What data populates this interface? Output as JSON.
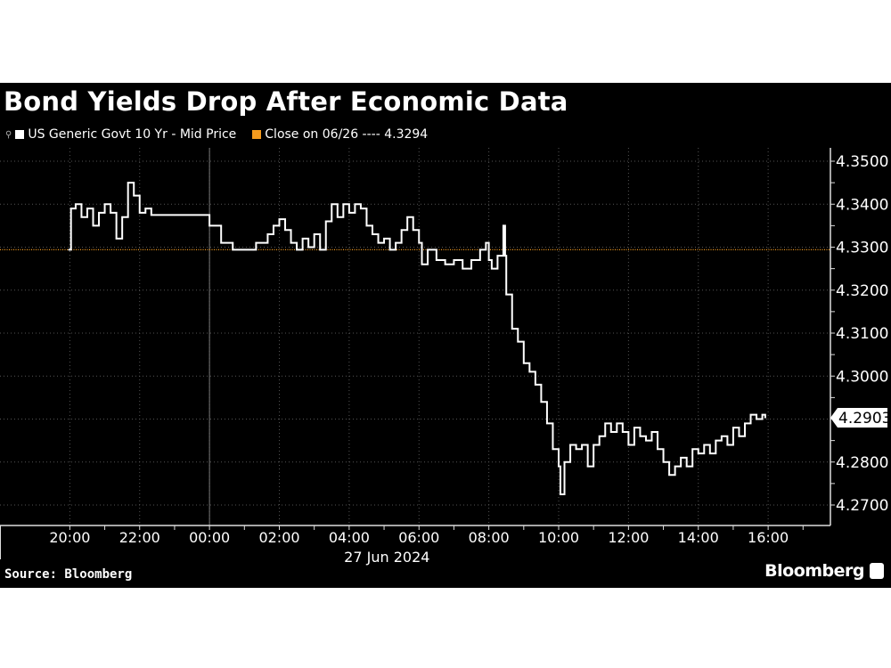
{
  "chart_data": {
    "type": "line",
    "title": "Bond Yields Drop After Economic Data",
    "source": "Source: Bloomberg",
    "brand": "Bloomberg",
    "legend_position": "top-left",
    "grid": true,
    "xlabel": "27 Jun 2024",
    "x_tick_labels": [
      "20:00",
      "22:00",
      "00:00",
      "02:00",
      "04:00",
      "06:00",
      "08:00",
      "10:00",
      "12:00",
      "14:00",
      "16:00"
    ],
    "x_ticks": [
      "2024-06-26 20:00",
      "2024-06-26 22:00",
      "2024-06-27 00:00",
      "2024-06-27 02:00",
      "2024-06-27 04:00",
      "2024-06-27 06:00",
      "2024-06-27 08:00",
      "2024-06-27 10:00",
      "2024-06-27 12:00",
      "2024-06-27 14:00",
      "2024-06-27 16:00"
    ],
    "xlim": [
      "2024-06-26 18:00",
      "2024-06-27 17:47"
    ],
    "y_tick_labels": [
      "4.3500",
      "4.3400",
      "4.3300",
      "4.3200",
      "4.3100",
      "4.3000",
      "4.2800",
      "4.2700"
    ],
    "y_ticks": [
      4.35,
      4.34,
      4.33,
      4.32,
      4.31,
      4.3,
      4.28,
      4.27
    ],
    "ylim": [
      4.2667,
      4.3533
    ],
    "y_axis_side": "right",
    "last_value_label": "4.2903",
    "last_value": 4.2903,
    "series": [
      {
        "name": "US Generic Govt 10 Yr - Mid Price",
        "color": "#ffffff",
        "step": true,
        "points": [
          [
            "2024-06-26 19:58",
            4.3294
          ],
          [
            "2024-06-26 20:02",
            4.339
          ],
          [
            "2024-06-26 20:10",
            4.34
          ],
          [
            "2024-06-26 20:20",
            4.337
          ],
          [
            "2024-06-26 20:30",
            4.339
          ],
          [
            "2024-06-26 20:40",
            4.335
          ],
          [
            "2024-06-26 20:50",
            4.338
          ],
          [
            "2024-06-26 21:00",
            4.34
          ],
          [
            "2024-06-26 21:10",
            4.338
          ],
          [
            "2024-06-26 21:20",
            4.332
          ],
          [
            "2024-06-26 21:30",
            4.337
          ],
          [
            "2024-06-26 21:40",
            4.345
          ],
          [
            "2024-06-26 21:50",
            4.342
          ],
          [
            "2024-06-26 22:00",
            4.338
          ],
          [
            "2024-06-26 22:10",
            4.339
          ],
          [
            "2024-06-26 22:20",
            4.3375
          ],
          [
            "2024-06-26 23:00",
            4.3375
          ],
          [
            "2024-06-26 23:55",
            4.3375
          ],
          [
            "2024-06-27 00:00",
            4.335
          ],
          [
            "2024-06-27 00:20",
            4.331
          ],
          [
            "2024-06-27 00:40",
            4.3294
          ],
          [
            "2024-06-27 01:15",
            4.3294
          ],
          [
            "2024-06-27 01:20",
            4.331
          ],
          [
            "2024-06-27 01:40",
            4.333
          ],
          [
            "2024-06-27 01:50",
            4.335
          ],
          [
            "2024-06-27 02:00",
            4.3365
          ],
          [
            "2024-06-27 02:10",
            4.334
          ],
          [
            "2024-06-27 02:20",
            4.331
          ],
          [
            "2024-06-27 02:30",
            4.3294
          ],
          [
            "2024-06-27 02:40",
            4.332
          ],
          [
            "2024-06-27 02:50",
            4.33
          ],
          [
            "2024-06-27 03:00",
            4.333
          ],
          [
            "2024-06-27 03:10",
            4.3294
          ],
          [
            "2024-06-27 03:20",
            4.336
          ],
          [
            "2024-06-27 03:30",
            4.34
          ],
          [
            "2024-06-27 03:40",
            4.337
          ],
          [
            "2024-06-27 03:50",
            4.34
          ],
          [
            "2024-06-27 04:00",
            4.338
          ],
          [
            "2024-06-27 04:10",
            4.34
          ],
          [
            "2024-06-27 04:20",
            4.339
          ],
          [
            "2024-06-27 04:30",
            4.335
          ],
          [
            "2024-06-27 04:40",
            4.333
          ],
          [
            "2024-06-27 04:50",
            4.331
          ],
          [
            "2024-06-27 05:00",
            4.332
          ],
          [
            "2024-06-27 05:10",
            4.3294
          ],
          [
            "2024-06-27 05:20",
            4.331
          ],
          [
            "2024-06-27 05:30",
            4.334
          ],
          [
            "2024-06-27 05:40",
            4.337
          ],
          [
            "2024-06-27 05:50",
            4.334
          ],
          [
            "2024-06-27 06:00",
            4.331
          ],
          [
            "2024-06-27 06:05",
            4.326
          ],
          [
            "2024-06-27 06:15",
            4.3294
          ],
          [
            "2024-06-27 06:30",
            4.327
          ],
          [
            "2024-06-27 06:45",
            4.326
          ],
          [
            "2024-06-27 07:00",
            4.327
          ],
          [
            "2024-06-27 07:15",
            4.325
          ],
          [
            "2024-06-27 07:30",
            4.327
          ],
          [
            "2024-06-27 07:45",
            4.3294
          ],
          [
            "2024-06-27 07:55",
            4.331
          ],
          [
            "2024-06-27 08:00",
            4.327
          ],
          [
            "2024-06-27 08:05",
            4.325
          ],
          [
            "2024-06-27 08:15",
            4.328
          ],
          [
            "2024-06-27 08:25",
            4.335
          ],
          [
            "2024-06-27 08:28",
            4.328
          ],
          [
            "2024-06-27 08:30",
            4.319
          ],
          [
            "2024-06-27 08:40",
            4.311
          ],
          [
            "2024-06-27 08:50",
            4.308
          ],
          [
            "2024-06-27 09:00",
            4.303
          ],
          [
            "2024-06-27 09:10",
            4.301
          ],
          [
            "2024-06-27 09:20",
            4.298
          ],
          [
            "2024-06-27 09:30",
            4.294
          ],
          [
            "2024-06-27 09:40",
            4.289
          ],
          [
            "2024-06-27 09:50",
            4.283
          ],
          [
            "2024-06-27 10:00",
            4.279
          ],
          [
            "2024-06-27 10:03",
            4.2725
          ],
          [
            "2024-06-27 10:10",
            4.28
          ],
          [
            "2024-06-27 10:20",
            4.284
          ],
          [
            "2024-06-27 10:30",
            4.283
          ],
          [
            "2024-06-27 10:40",
            4.284
          ],
          [
            "2024-06-27 10:50",
            4.279
          ],
          [
            "2024-06-27 11:00",
            4.284
          ],
          [
            "2024-06-27 11:10",
            4.286
          ],
          [
            "2024-06-27 11:20",
            4.289
          ],
          [
            "2024-06-27 11:30",
            4.287
          ],
          [
            "2024-06-27 11:40",
            4.289
          ],
          [
            "2024-06-27 11:50",
            4.287
          ],
          [
            "2024-06-27 12:00",
            4.284
          ],
          [
            "2024-06-27 12:10",
            4.288
          ],
          [
            "2024-06-27 12:20",
            4.286
          ],
          [
            "2024-06-27 12:30",
            4.285
          ],
          [
            "2024-06-27 12:40",
            4.287
          ],
          [
            "2024-06-27 12:50",
            4.283
          ],
          [
            "2024-06-27 13:00",
            4.28
          ],
          [
            "2024-06-27 13:10",
            4.277
          ],
          [
            "2024-06-27 13:20",
            4.279
          ],
          [
            "2024-06-27 13:30",
            4.281
          ],
          [
            "2024-06-27 13:40",
            4.279
          ],
          [
            "2024-06-27 13:50",
            4.283
          ],
          [
            "2024-06-27 14:00",
            4.282
          ],
          [
            "2024-06-27 14:10",
            4.284
          ],
          [
            "2024-06-27 14:20",
            4.282
          ],
          [
            "2024-06-27 14:30",
            4.285
          ],
          [
            "2024-06-27 14:40",
            4.286
          ],
          [
            "2024-06-27 14:50",
            4.284
          ],
          [
            "2024-06-27 15:00",
            4.288
          ],
          [
            "2024-06-27 15:10",
            4.286
          ],
          [
            "2024-06-27 15:20",
            4.289
          ],
          [
            "2024-06-27 15:30",
            4.291
          ],
          [
            "2024-06-27 15:40",
            4.29
          ],
          [
            "2024-06-27 15:50",
            4.291
          ],
          [
            "2024-06-27 15:55",
            4.2903
          ]
        ]
      },
      {
        "name": "Close on 06/26 ---- 4.3294",
        "color": "#f39a1e",
        "type": "reference-line",
        "value": 4.3294
      }
    ]
  }
}
